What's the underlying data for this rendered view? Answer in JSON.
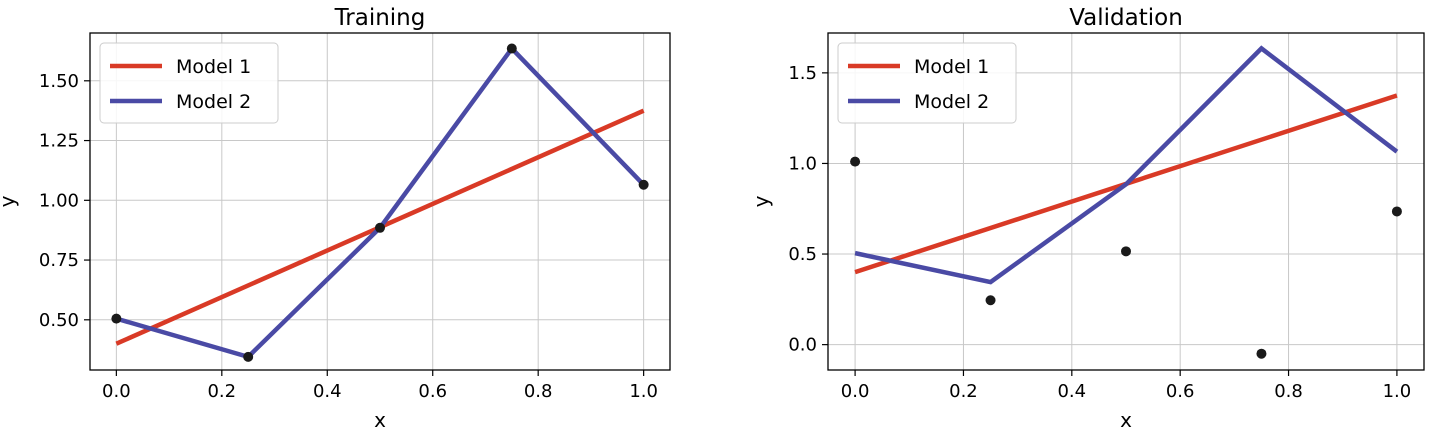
{
  "colors": {
    "Model 1": "#d93a26",
    "Model 2": "#4a4aa5",
    "points": "#1a1a1a",
    "grid": "#c8c8c8"
  },
  "chart_data": [
    {
      "type": "line",
      "title": "Training",
      "xlabel": "x",
      "ylabel": "y",
      "xlim": [
        -0.05,
        1.05
      ],
      "ylim": [
        0.29,
        1.7
      ],
      "xticks": [
        0.0,
        0.2,
        0.4,
        0.6,
        0.8,
        1.0
      ],
      "xtick_labels": [
        "0.0",
        "0.2",
        "0.4",
        "0.6",
        "0.8",
        "1.0"
      ],
      "yticks": [
        0.5,
        0.75,
        1.0,
        1.25,
        1.5
      ],
      "ytick_labels": [
        "0.50",
        "0.75",
        "1.00",
        "1.25",
        "1.50"
      ],
      "grid": true,
      "legend": "top-left",
      "series": [
        {
          "name": "Model 1",
          "x": [
            0.0,
            1.0
          ],
          "y": [
            0.4,
            1.375
          ]
        },
        {
          "name": "Model 2",
          "x": [
            0.0,
            0.25,
            0.5,
            0.75,
            1.0
          ],
          "y": [
            0.505,
            0.345,
            0.885,
            1.635,
            1.065
          ]
        }
      ],
      "points": {
        "x": [
          0.0,
          0.25,
          0.5,
          0.75,
          1.0
        ],
        "y": [
          0.505,
          0.345,
          0.885,
          1.635,
          1.065
        ]
      }
    },
    {
      "type": "line",
      "title": "Validation",
      "xlabel": "x",
      "ylabel": "y",
      "xlim": [
        -0.05,
        1.05
      ],
      "ylim": [
        -0.14,
        1.72
      ],
      "xticks": [
        0.0,
        0.2,
        0.4,
        0.6,
        0.8,
        1.0
      ],
      "xtick_labels": [
        "0.0",
        "0.2",
        "0.4",
        "0.6",
        "0.8",
        "1.0"
      ],
      "yticks": [
        0.0,
        0.5,
        1.0,
        1.5
      ],
      "ytick_labels": [
        "0.0",
        "0.5",
        "1.0",
        "1.5"
      ],
      "grid": true,
      "legend": "top-left",
      "series": [
        {
          "name": "Model 1",
          "x": [
            0.0,
            1.0
          ],
          "y": [
            0.4,
            1.375
          ]
        },
        {
          "name": "Model 2",
          "x": [
            0.0,
            0.25,
            0.5,
            0.75,
            1.0
          ],
          "y": [
            0.505,
            0.345,
            0.885,
            1.635,
            1.065
          ]
        }
      ],
      "points": {
        "x": [
          0.0,
          0.25,
          0.5,
          0.75,
          1.0
        ],
        "y": [
          1.01,
          0.245,
          0.515,
          -0.05,
          0.735
        ]
      }
    }
  ]
}
